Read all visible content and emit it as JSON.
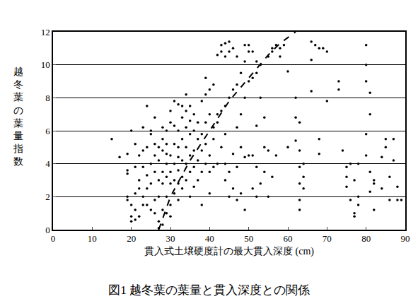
{
  "chart_data": {
    "type": "scatter",
    "title": "図1 越冬葉の葉量と貫入深度との関係",
    "xlabel": "貫入式土壌硬度計の最大貫入深度 (cm)",
    "ylabel": "越冬葉の葉量指数",
    "xlim": [
      0,
      90
    ],
    "xticks": [
      0,
      10,
      20,
      30,
      40,
      50,
      60,
      70,
      80,
      90
    ],
    "ylim": [
      0,
      12
    ],
    "yticks": [
      0,
      2,
      4,
      6,
      8,
      10,
      12
    ],
    "grid": "y",
    "series": [
      {
        "type": "scatter",
        "color": "#000000",
        "marker": "dot",
        "x": [
          15,
          17,
          19,
          19,
          19,
          19,
          19,
          20,
          20,
          20,
          20,
          21,
          21,
          21,
          21,
          21,
          22,
          22,
          22,
          22,
          23,
          23,
          23,
          23,
          23,
          24,
          24,
          24,
          24,
          24,
          25,
          25,
          25,
          25,
          25,
          26,
          26,
          26,
          26,
          26,
          26,
          27,
          27,
          27,
          27,
          27,
          27,
          28,
          28,
          28,
          28,
          28,
          28,
          28,
          29,
          29,
          29,
          29,
          29,
          29,
          29,
          30,
          30,
          30,
          30,
          30,
          30,
          30,
          31,
          31,
          31,
          31,
          31,
          31,
          32,
          32,
          32,
          32,
          32,
          32,
          32,
          33,
          33,
          33,
          33,
          33,
          33,
          34,
          34,
          34,
          34,
          34,
          34,
          35,
          35,
          35,
          35,
          35,
          35,
          36,
          36,
          36,
          36,
          36,
          37,
          37,
          37,
          37,
          38,
          38,
          38,
          38,
          38,
          39,
          39,
          39,
          39,
          39,
          40,
          40,
          40,
          40,
          40,
          41,
          41,
          41,
          41,
          42,
          42,
          42,
          42,
          43,
          43,
          43,
          43,
          44,
          44,
          44,
          44,
          44,
          44,
          45,
          45,
          45,
          45,
          45,
          46,
          46,
          46,
          46,
          47,
          47,
          47,
          47,
          47,
          48,
          48,
          48,
          48,
          49,
          49,
          49,
          49,
          49,
          50,
          50,
          50,
          50,
          51,
          51,
          51,
          51,
          52,
          52,
          52,
          52,
          52,
          53,
          53,
          53,
          54,
          54,
          54,
          55,
          55,
          55,
          56,
          56,
          56,
          57,
          57,
          58,
          58,
          59,
          60,
          60,
          62,
          62,
          62,
          63,
          63,
          63,
          63,
          63,
          63,
          64,
          64,
          64,
          66,
          66,
          66,
          67,
          68,
          68,
          68,
          69,
          70,
          70,
          73,
          73,
          74,
          75,
          75,
          75,
          76,
          76,
          77,
          77,
          77,
          78,
          78,
          78,
          80,
          80,
          80,
          80,
          80,
          81,
          81,
          81,
          81,
          82,
          82,
          82,
          84,
          84,
          85,
          85,
          86,
          86,
          87,
          87,
          88,
          88,
          89
        ],
        "values": [
          5.5,
          4.4,
          1.8,
          2,
          3.4,
          3.6,
          4.6,
          0.5,
          0.8,
          1.5,
          6,
          0.6,
          1.2,
          2.2,
          3.8,
          5.2,
          0.8,
          2.5,
          3,
          4.5,
          1.5,
          2,
          3.8,
          4.8,
          6.2,
          2.5,
          7.5,
          3.3,
          5,
          1.5,
          1.2,
          4,
          5.8,
          2.8,
          6,
          1,
          1.8,
          3.5,
          4.5,
          5.2,
          6.8,
          0.5,
          2,
          3,
          4.2,
          5,
          0.1,
          0.3,
          1.2,
          2.8,
          3.5,
          4.8,
          5.5,
          6.2,
          1,
          2,
          3.2,
          4,
          4.6,
          5.2,
          6,
          0.8,
          1.5,
          2.8,
          3.5,
          4.5,
          6.5,
          7.2,
          2.2,
          3,
          4,
          5.2,
          6.3,
          7.8,
          1.8,
          2.8,
          3.6,
          4.4,
          5,
          6,
          7.6,
          2.5,
          3.2,
          4.2,
          5.5,
          6.8,
          7.5,
          3,
          4,
          5,
          6.2,
          7.2,
          8.2,
          2,
          3.5,
          4.5,
          5.8,
          6.6,
          7.5,
          2.6,
          3.8,
          4.8,
          6,
          7,
          3,
          4.2,
          5.5,
          6.5,
          1.5,
          3.5,
          4.8,
          5.8,
          7.8,
          4,
          5.2,
          6.5,
          8.2,
          9.2,
          2.2,
          3.5,
          4.5,
          7,
          8.5,
          3.8,
          5.5,
          6.2,
          8.8,
          4,
          6.5,
          7,
          10.6,
          5,
          7.2,
          10.8,
          11.2,
          3,
          4,
          5.8,
          7.5,
          10.5,
          11.3,
          2,
          3.5,
          8,
          10.8,
          11.4,
          2.5,
          4.6,
          8.5,
          11,
          1.8,
          3.8,
          6.2,
          8.8,
          10.5,
          2.2,
          5,
          7,
          9.5,
          1.2,
          4.4,
          8,
          11.2,
          10.2,
          4.5,
          9,
          10.8,
          11.2,
          2.5,
          4.5,
          9.2,
          10.8,
          2,
          3.8,
          6.3,
          9.5,
          10.2,
          2.8,
          8,
          10,
          3.5,
          5,
          6.8,
          2,
          4.8,
          10.5,
          3.2,
          10.8,
          11,
          4.5,
          11.2,
          10.5,
          11,
          11.2,
          5,
          9.6,
          8,
          6.8,
          5.4,
          6.5,
          4.8,
          3.8,
          2.8,
          1.8,
          1.2,
          4,
          3.2,
          2.5,
          10.3,
          8.4,
          11.4,
          11.2,
          11,
          4.6,
          5.5,
          11,
          10.8,
          7.8,
          9,
          8.5,
          4.8,
          3.8,
          3.2,
          2.6,
          1.8,
          4,
          0.8,
          1,
          3,
          4,
          2,
          1.5,
          11.2,
          10,
          9,
          5.8,
          4.5,
          8.3,
          7,
          3.5,
          2.3,
          2.8,
          3,
          1.2,
          4.4,
          2.5,
          5.5,
          5,
          3.2,
          1.8,
          5.5,
          4.2,
          1.8,
          2.6,
          1.8
        ]
      },
      {
        "type": "line",
        "color": "#000000",
        "line_style": "dashed",
        "x": [
          27,
          30,
          35,
          40,
          45,
          50,
          55,
          58,
          62
        ],
        "values": [
          0,
          2,
          4.2,
          6,
          7.8,
          9.2,
          10.6,
          11.3,
          12
        ]
      }
    ]
  }
}
